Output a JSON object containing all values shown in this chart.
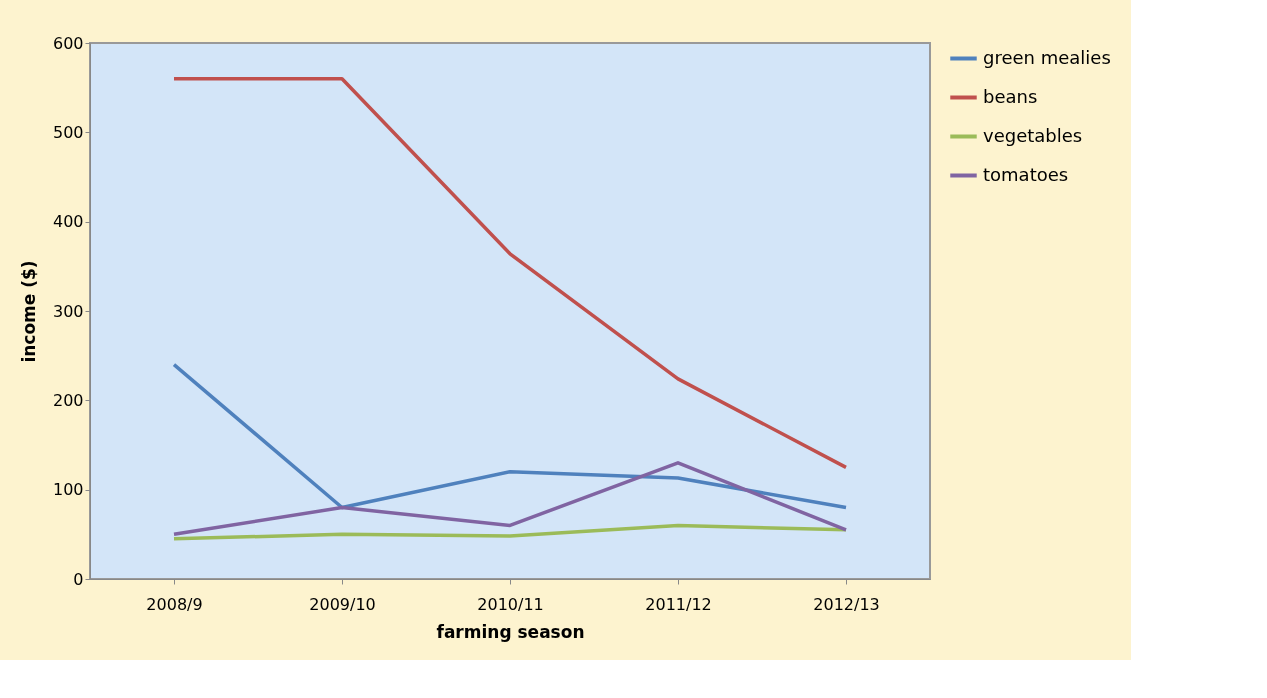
{
  "chart_data": {
    "type": "line",
    "xlabel": "farming season",
    "ylabel": "income ($)",
    "categories": [
      "2008/9",
      "2009/10",
      "2010/11",
      "2011/12",
      "2012/13"
    ],
    "series": [
      {
        "name": "green mealies",
        "color": "#4f81bd",
        "values": [
          240,
          80,
          120,
          113,
          80
        ]
      },
      {
        "name": "beans",
        "color": "#c0504d",
        "values": [
          560,
          560,
          364,
          224,
          125
        ]
      },
      {
        "name": "vegetables",
        "color": "#9bbb59",
        "values": [
          45,
          50,
          48,
          60,
          55
        ]
      },
      {
        "name": "tomatoes",
        "color": "#8064a2",
        "values": [
          50,
          80,
          60,
          130,
          55
        ]
      }
    ],
    "ylim": [
      0,
      600
    ],
    "yticks": [
      0,
      100,
      200,
      300,
      400,
      500,
      600
    ],
    "grid": false,
    "legend": "right",
    "marker": "none",
    "line_style": "solid"
  }
}
